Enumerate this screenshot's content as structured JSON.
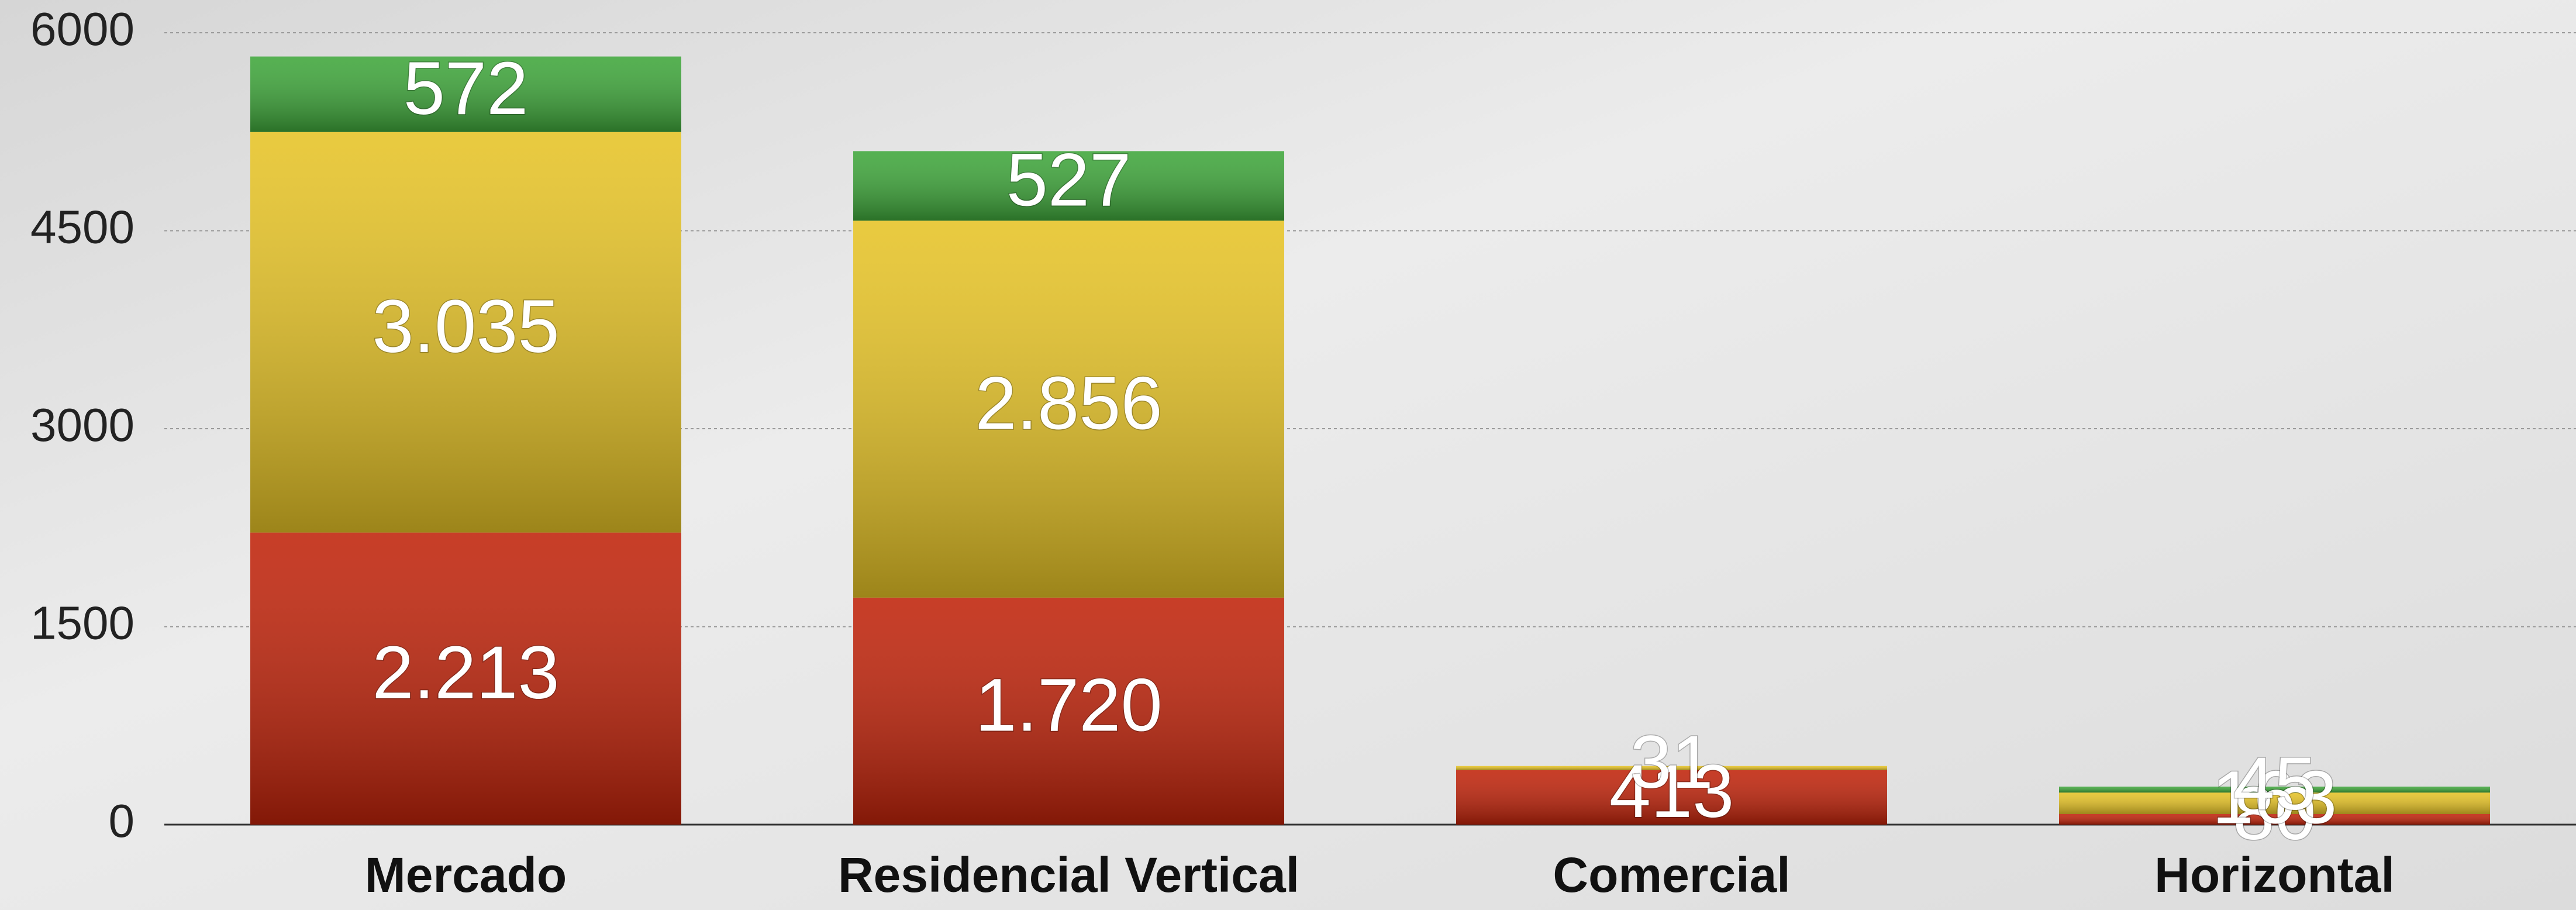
{
  "chart_data": {
    "type": "stacked_bar",
    "categories": [
      "Mercado",
      "Residencial Vertical",
      "Comercial",
      "Horizontal"
    ],
    "series": [
      {
        "color": "#c0230a",
        "values": [
          2213,
          1720,
          413,
          80
        ],
        "value_labels": [
          "2.213",
          "1.720",
          "413",
          "80"
        ]
      },
      {
        "color": "#e6c326",
        "values": [
          3035,
          2856,
          31,
          163
        ],
        "value_labels": [
          "3.035",
          "2.856",
          "31",
          "163"
        ]
      },
      {
        "color": "#3ea63a",
        "values": [
          572,
          527,
          0,
          45
        ],
        "value_labels": [
          "572",
          "527",
          null,
          "45"
        ]
      }
    ],
    "ylim": [
      0,
      6000
    ],
    "yticks": [
      0,
      1500,
      3000,
      4500,
      6000
    ],
    "grid": true
  }
}
